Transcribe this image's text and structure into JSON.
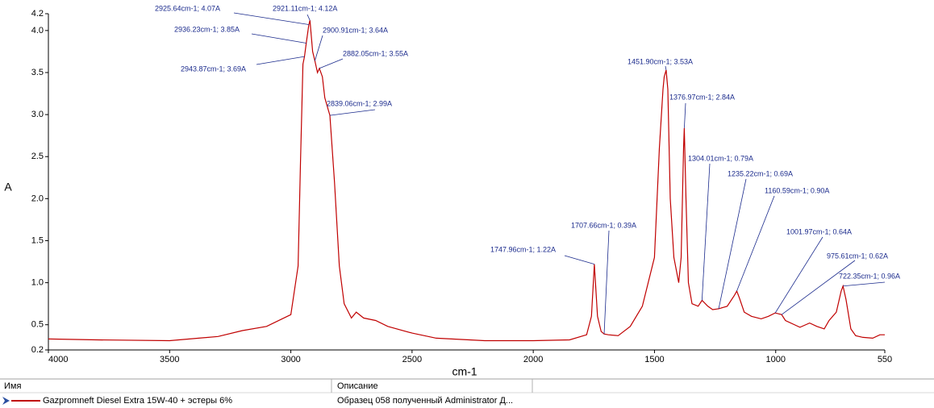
{
  "chart_data": {
    "type": "line",
    "xlabel": "cm-1",
    "ylabel": "A",
    "xlim": [
      4000,
      550
    ],
    "ylim": [
      0.2,
      4.2
    ],
    "xticks": [
      4000,
      3500,
      3000,
      2500,
      2000,
      1500,
      1000,
      550
    ],
    "yticks": [
      0.2,
      0.5,
      {
        "value": 1,
        "label": "1.0"
      },
      1.5,
      {
        "value": 2,
        "label": "2.0"
      },
      2.5,
      {
        "value": 3,
        "label": "3.0"
      },
      3.5,
      {
        "value": 4,
        "label": "4.0"
      },
      4.2
    ],
    "series": [
      {
        "name": "Gazpromneft Diesel Extra 15W-40 + эстеры 6%",
        "color": "#c00000",
        "x": [
          4000,
          3800,
          3500,
          3300,
          3200,
          3100,
          3000,
          2970,
          2960,
          2950,
          2943.87,
          2936.23,
          2925.64,
          2921.11,
          2910,
          2900.91,
          2890,
          2882.05,
          2870,
          2860,
          2839.06,
          2820,
          2800,
          2780,
          2750,
          2730,
          2700,
          2650,
          2600,
          2500,
          2400,
          2200,
          2000,
          1850,
          1780,
          1760,
          1747.96,
          1735,
          1720,
          1707.66,
          1690,
          1650,
          1600,
          1550,
          1500,
          1480,
          1465,
          1460,
          1455,
          1451.9,
          1445,
          1435,
          1420,
          1400,
          1390,
          1380,
          1376.97,
          1370,
          1360,
          1345,
          1320,
          1304.01,
          1280,
          1260,
          1235.22,
          1200,
          1170,
          1160.59,
          1150,
          1130,
          1100,
          1060,
          1030,
          1001.97,
          975.61,
          960,
          900,
          860,
          830,
          800,
          780,
          750,
          730,
          722.35,
          710,
          690,
          670,
          640,
          600,
          570,
          550
        ],
        "values": [
          0.33,
          0.32,
          0.31,
          0.36,
          0.43,
          0.48,
          0.62,
          1.2,
          2.45,
          3.6,
          3.69,
          3.85,
          4.07,
          4.12,
          3.75,
          3.64,
          3.5,
          3.55,
          3.45,
          3.2,
          2.99,
          2.2,
          1.2,
          0.75,
          0.58,
          0.65,
          0.58,
          0.55,
          0.48,
          0.4,
          0.34,
          0.31,
          0.31,
          0.32,
          0.38,
          0.6,
          1.22,
          0.6,
          0.42,
          0.39,
          0.38,
          0.37,
          0.48,
          0.72,
          1.3,
          2.6,
          3.3,
          3.45,
          3.5,
          3.53,
          3.3,
          2.0,
          1.3,
          1.0,
          1.3,
          2.6,
          2.84,
          2.0,
          1.0,
          0.75,
          0.72,
          0.79,
          0.72,
          0.68,
          0.69,
          0.72,
          0.85,
          0.9,
          0.82,
          0.65,
          0.6,
          0.57,
          0.6,
          0.64,
          0.62,
          0.55,
          0.47,
          0.52,
          0.48,
          0.45,
          0.55,
          0.65,
          0.9,
          0.96,
          0.8,
          0.45,
          0.37,
          0.35,
          0.34,
          0.38,
          0.38
        ]
      }
    ],
    "annotations": [
      {
        "text": "2925.64cm-1; 4.07A",
        "x": 2925.64,
        "y": 4.07
      },
      {
        "text": "2921.11cm-1; 4.12A",
        "x": 2921.11,
        "y": 4.12
      },
      {
        "text": "2936.23cm-1; 3.85A",
        "x": 2936.23,
        "y": 3.85
      },
      {
        "text": "2900.91cm-1; 3.64A",
        "x": 2900.91,
        "y": 3.64
      },
      {
        "text": "2943.87cm-1; 3.69A",
        "x": 2943.87,
        "y": 3.69
      },
      {
        "text": "2882.05cm-1; 3.55A",
        "x": 2882.05,
        "y": 3.55
      },
      {
        "text": "2839.06cm-1; 2.99A",
        "x": 2839.06,
        "y": 2.99
      },
      {
        "text": "1451.90cm-1; 3.53A",
        "x": 1451.9,
        "y": 3.53
      },
      {
        "text": "1376.97cm-1; 2.84A",
        "x": 1376.97,
        "y": 2.84
      },
      {
        "text": "1304.01cm-1; 0.79A",
        "x": 1304.01,
        "y": 0.79
      },
      {
        "text": "1235.22cm-1; 0.69A",
        "x": 1235.22,
        "y": 0.69
      },
      {
        "text": "1160.59cm-1; 0.90A",
        "x": 1160.59,
        "y": 0.9
      },
      {
        "text": "1001.97cm-1; 0.64A",
        "x": 1001.97,
        "y": 0.64
      },
      {
        "text": "975.61cm-1; 0.62A",
        "x": 975.61,
        "y": 0.62
      },
      {
        "text": "722.35cm-1; 0.96A",
        "x": 722.35,
        "y": 0.96
      },
      {
        "text": "1747.96cm-1; 1.22A",
        "x": 1747.96,
        "y": 1.22
      },
      {
        "text": "1707.66cm-1; 0.39A",
        "x": 1707.66,
        "y": 0.39
      }
    ]
  },
  "table": {
    "columns": [
      "Имя",
      "Описание"
    ],
    "description": "Образец 058 полученный Administrator Д..."
  }
}
